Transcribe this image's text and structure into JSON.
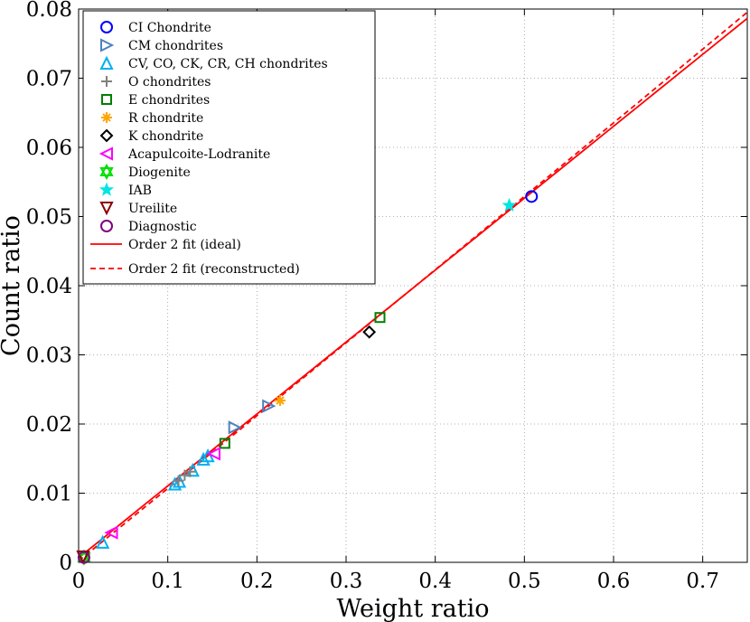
{
  "chart_data": {
    "type": "scatter",
    "xlabel": "Weight ratio",
    "ylabel": "Count ratio",
    "xlim": [
      0,
      0.75
    ],
    "ylim": [
      0,
      0.08
    ],
    "x_ticks": [
      0,
      0.1,
      0.2,
      0.3,
      0.4,
      0.5,
      0.6,
      0.7
    ],
    "x_tick_labels": [
      "0",
      "0.1",
      "0.2",
      "0.3",
      "0.4",
      "0.5",
      "0.6",
      "0.7"
    ],
    "y_ticks": [
      0,
      0.01,
      0.02,
      0.03,
      0.04,
      0.05,
      0.06,
      0.07,
      0.08
    ],
    "y_tick_labels": [
      "0",
      "0.01",
      "0.02",
      "0.03",
      "0.04",
      "0.05",
      "0.06",
      "0.07",
      "0.08"
    ],
    "grid": true,
    "legend_position": "top-left",
    "series": [
      {
        "name": "CI Chondrite",
        "marker": "circle",
        "color": "#0000ff",
        "points": [
          [
            0.508,
            0.0529
          ]
        ]
      },
      {
        "name": "CM chondrites",
        "marker": "triangle-right",
        "color": "#4f81bd",
        "points": [
          [
            0.175,
            0.0195
          ],
          [
            0.213,
            0.0226
          ]
        ]
      },
      {
        "name": "CV, CO, CK, CR, CH chondrites",
        "marker": "triangle-up",
        "color": "#00b0f0",
        "points": [
          [
            0.027,
            0.0029
          ],
          [
            0.108,
            0.0113
          ],
          [
            0.113,
            0.0117
          ],
          [
            0.128,
            0.0133
          ],
          [
            0.14,
            0.0149
          ],
          [
            0.145,
            0.0154
          ]
        ]
      },
      {
        "name": "O chondrites",
        "marker": "plus",
        "color": "#808080",
        "points": [
          [
            0.112,
            0.0118
          ],
          [
            0.119,
            0.0126
          ],
          [
            0.125,
            0.0131
          ]
        ]
      },
      {
        "name": "E chondrites",
        "marker": "square",
        "color": "#008000",
        "points": [
          [
            0.164,
            0.0172
          ],
          [
            0.338,
            0.0354
          ]
        ]
      },
      {
        "name": "R chondrite",
        "marker": "asterisk",
        "color": "#ffa500",
        "points": [
          [
            0.226,
            0.0234
          ]
        ]
      },
      {
        "name": "K chondrite",
        "marker": "diamond",
        "color": "#000000",
        "points": [
          [
            0.326,
            0.0333
          ]
        ]
      },
      {
        "name": "Acapulcoite-Lodranite",
        "marker": "triangle-left",
        "color": "#ff00ff",
        "points": [
          [
            0.037,
            0.0043
          ],
          [
            0.152,
            0.0157
          ]
        ]
      },
      {
        "name": "Diogenite",
        "marker": "hexagram",
        "color": "#00e000",
        "points": [
          [
            0.006,
            0.0007
          ]
        ]
      },
      {
        "name": "IAB",
        "marker": "pentagram",
        "color": "#00e5e5",
        "points": [
          [
            0.483,
            0.0516
          ]
        ]
      },
      {
        "name": "Ureilite",
        "marker": "triangle-down",
        "color": "#8b0000",
        "points": [
          [
            0.005,
            0.0008
          ]
        ]
      },
      {
        "name": "Diagnostic",
        "marker": "circle",
        "color": "#800080",
        "points": [
          [
            0.006,
            0.0007
          ]
        ]
      }
    ],
    "fits": [
      {
        "name": "Order 2 fit (ideal)",
        "style": "solid",
        "color": "#ff0000",
        "coefficients": [
          4e-06,
          0.104,
          0.00065
        ]
      },
      {
        "name": "Order 2 fit (reconstructed)",
        "style": "dashed",
        "color": "#ff0000",
        "coefficients": [
          0.00145,
          0.1047,
          0.0002
        ]
      }
    ]
  }
}
